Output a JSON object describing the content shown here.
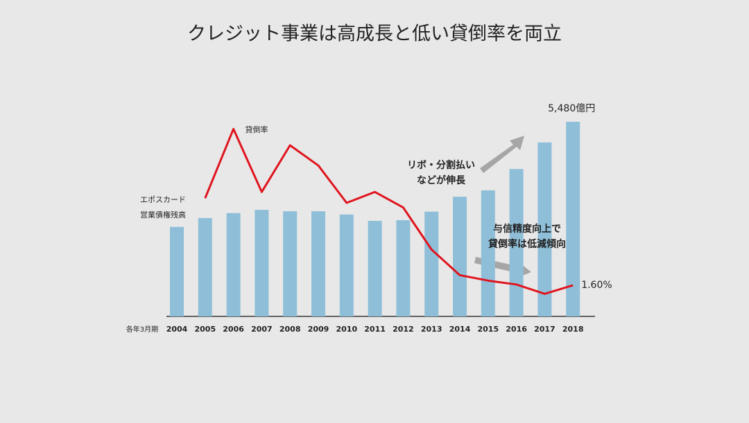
{
  "chart_data": {
    "type": "bar_line",
    "title": "クレジット事業は高成長と低い貸倒率を両立",
    "x_note": "各年3月期",
    "categories": [
      "2004",
      "2005",
      "2006",
      "2007",
      "2008",
      "2009",
      "2010",
      "2011",
      "2012",
      "2013",
      "2014",
      "2015",
      "2016",
      "2017",
      "2018"
    ],
    "series": [
      {
        "name": [
          "エポスカード",
          "営業債権残高"
        ],
        "type": "bar",
        "color": "#8fbfd8",
        "values": [
          2520,
          2770,
          2910,
          3000,
          2960,
          2960,
          2870,
          2690,
          2710,
          2950,
          3370,
          3550,
          4150,
          4900,
          5480
        ],
        "value_labels": [
          null,
          null,
          null,
          null,
          null,
          null,
          null,
          null,
          null,
          null,
          null,
          null,
          null,
          null,
          "5,480億円"
        ]
      },
      {
        "name": [
          "貸倒率"
        ],
        "type": "line",
        "color": "#e0141e",
        "axis": "y2",
        "values": [
          null,
          2.72,
          3.61,
          2.8,
          3.4,
          3.14,
          2.66,
          2.8,
          2.6,
          2.06,
          1.73,
          1.66,
          1.61,
          1.49,
          1.6
        ],
        "value_labels": [
          null,
          null,
          null,
          null,
          null,
          null,
          null,
          null,
          null,
          null,
          null,
          null,
          null,
          null,
          "1.60%"
        ]
      }
    ],
    "ylim": [
      0,
      6570
    ],
    "y2lim": [
      1.2,
      4.2
    ],
    "annotations": [
      [
        "リボ・分割払い",
        "などが伸長"
      ],
      [
        "与信精度向上で",
        "貸倒率は低減傾向"
      ]
    ]
  }
}
